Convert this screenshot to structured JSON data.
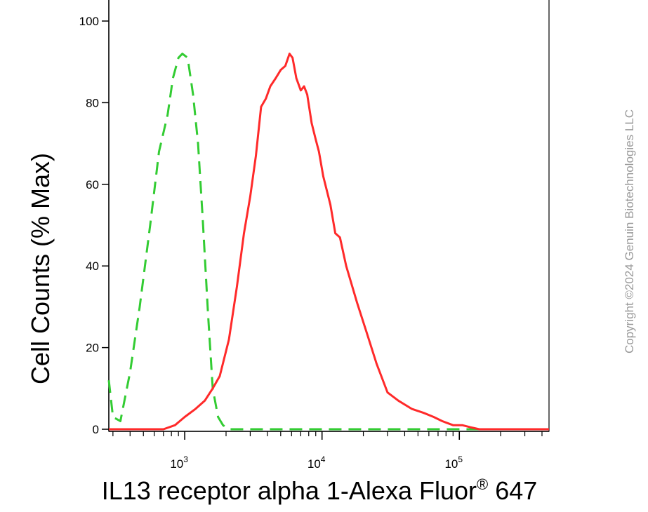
{
  "chart_data": {
    "type": "line",
    "xlabel": "IL13 receptor alpha 1-Alexa Fluor",
    "xlabel_sup": "®",
    "xlabel_suffix": " 647",
    "ylabel": "Cell Counts (% Max)",
    "x_scale": "log",
    "xlim": [
      280,
      450000
    ],
    "ylim": [
      0,
      100
    ],
    "y_ticks": [
      0,
      20,
      40,
      60,
      80,
      100
    ],
    "x_major_ticks": [
      {
        "value": 1000,
        "base": "10",
        "exp": "3"
      },
      {
        "value": 10000,
        "base": "10",
        "exp": "4"
      },
      {
        "value": 100000,
        "base": "10",
        "exp": "5"
      }
    ],
    "grid": false,
    "series": [
      {
        "color": "#33cc33",
        "style": "dashed",
        "points": [
          [
            280,
            12
          ],
          [
            300,
            3
          ],
          [
            340,
            2
          ],
          [
            400,
            14
          ],
          [
            470,
            30
          ],
          [
            560,
            50
          ],
          [
            650,
            68
          ],
          [
            750,
            77
          ],
          [
            820,
            86
          ],
          [
            900,
            91
          ],
          [
            960,
            92
          ],
          [
            1050,
            91
          ],
          [
            1150,
            82
          ],
          [
            1250,
            70
          ],
          [
            1350,
            52
          ],
          [
            1480,
            28
          ],
          [
            1600,
            10
          ],
          [
            1750,
            3
          ],
          [
            1900,
            1
          ],
          [
            2100,
            0
          ],
          [
            3000,
            0
          ],
          [
            10000,
            0
          ],
          [
            100000,
            0
          ],
          [
            450000,
            0
          ]
        ]
      },
      {
        "color": "#ff2a2a",
        "style": "solid",
        "points": [
          [
            280,
            0
          ],
          [
            700,
            0
          ],
          [
            850,
            1
          ],
          [
            1000,
            3
          ],
          [
            1200,
            5
          ],
          [
            1400,
            7
          ],
          [
            1600,
            10
          ],
          [
            1800,
            13
          ],
          [
            2100,
            22
          ],
          [
            2400,
            35
          ],
          [
            2700,
            48
          ],
          [
            3000,
            57
          ],
          [
            3300,
            67
          ],
          [
            3600,
            79
          ],
          [
            3900,
            81
          ],
          [
            4200,
            84
          ],
          [
            4600,
            86
          ],
          [
            5000,
            88
          ],
          [
            5400,
            89
          ],
          [
            5800,
            92
          ],
          [
            6100,
            91
          ],
          [
            6500,
            86
          ],
          [
            7000,
            83
          ],
          [
            7400,
            84
          ],
          [
            7800,
            82
          ],
          [
            8400,
            75
          ],
          [
            9000,
            71
          ],
          [
            9500,
            68
          ],
          [
            10200,
            62
          ],
          [
            11500,
            55
          ],
          [
            12500,
            48
          ],
          [
            13500,
            47
          ],
          [
            15000,
            40
          ],
          [
            18000,
            31
          ],
          [
            21000,
            24
          ],
          [
            25000,
            16
          ],
          [
            30000,
            9
          ],
          [
            36000,
            7
          ],
          [
            45000,
            5
          ],
          [
            55000,
            4
          ],
          [
            65000,
            3
          ],
          [
            75000,
            2
          ],
          [
            90000,
            1
          ],
          [
            105000,
            1
          ],
          [
            120000,
            0.5
          ],
          [
            140000,
            0
          ],
          [
            450000,
            0
          ]
        ]
      }
    ]
  },
  "copyright": "Copyright ©2024 Genuin Biotechnologies LLC"
}
